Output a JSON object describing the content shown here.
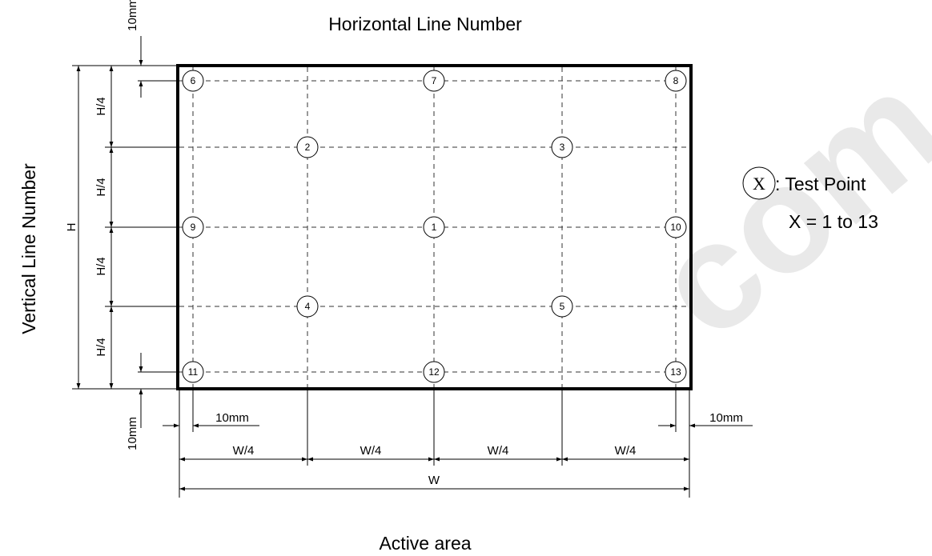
{
  "title_top": "Horizontal Line Number",
  "title_left": "Vertical Line Number",
  "title_bottom": "Active area",
  "dimensions": {
    "H": "H",
    "H4": "H/4",
    "W": "W",
    "W4": "W/4",
    "margin": "10mm"
  },
  "legend": {
    "symbol": "X",
    "text": ": Test Point",
    "range": "X = 1 to 13"
  },
  "test_points": [
    "1",
    "2",
    "3",
    "4",
    "5",
    "6",
    "7",
    "8",
    "9",
    "10",
    "11",
    "12",
    "13"
  ],
  "watermark": "com"
}
